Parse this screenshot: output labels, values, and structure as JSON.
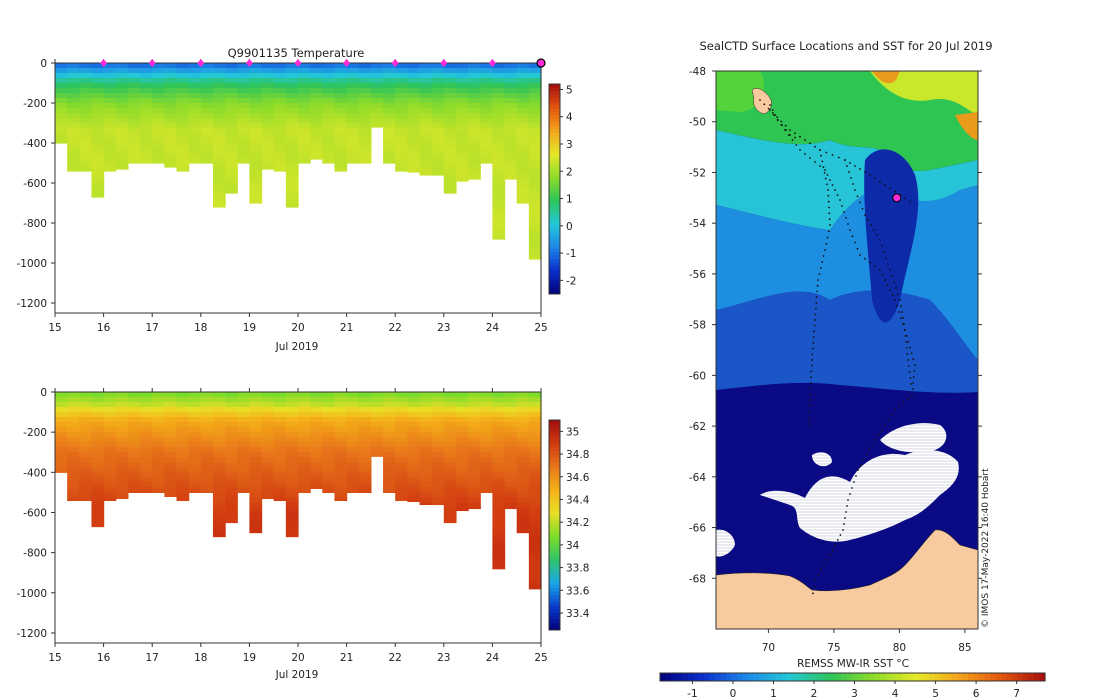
{
  "chart_data": [
    {
      "type": "heatmap",
      "title": "Q9901135  Temperature",
      "xlabel": "Jul 2019",
      "x_ticks": [
        "15",
        "16",
        "17",
        "18",
        "19",
        "20",
        "21",
        "22",
        "23",
        "24",
        "25"
      ],
      "xlim": [
        15,
        25
      ],
      "ylim": [
        -1250,
        0
      ],
      "y_ticks": [
        "0",
        "-200",
        "-400",
        "-600",
        "-800",
        "-1000",
        "-1200"
      ],
      "y_tick_values": [
        0,
        -200,
        -400,
        -600,
        -800,
        -1000,
        -1200
      ],
      "colorbar_ticks": [
        "5",
        "4",
        "3",
        "2",
        "1",
        "0",
        "-1",
        "-2"
      ],
      "colorbar_values": [
        5,
        4,
        3,
        2,
        1,
        0,
        -1,
        -2
      ],
      "colorbar_range": [
        -2.5,
        5.2
      ],
      "profile_days": [
        16,
        17,
        18,
        19,
        20,
        21,
        22,
        23,
        24,
        25
      ],
      "current_day": 25,
      "profile_max_depths": [
        400,
        540,
        540,
        670,
        540,
        530,
        500,
        500,
        500,
        520,
        540,
        500,
        500,
        720,
        650,
        500,
        700,
        530,
        540,
        720,
        500,
        480,
        500,
        540,
        500,
        500,
        320,
        500,
        540,
        545,
        560,
        560,
        650,
        590,
        580,
        500,
        880,
        580,
        700,
        980
      ],
      "layers": [
        {
          "depth": 0,
          "value": -1.2
        },
        {
          "depth": -100,
          "value": 0.8
        },
        {
          "depth": -200,
          "value": 1.7
        },
        {
          "depth": -330,
          "value": 2.3
        },
        {
          "depth": -1250,
          "value": 2.3
        }
      ]
    },
    {
      "type": "heatmap",
      "title": "",
      "xlabel": "Jul 2019",
      "x_ticks": [
        "15",
        "16",
        "17",
        "18",
        "19",
        "20",
        "21",
        "22",
        "23",
        "24",
        "25"
      ],
      "xlim": [
        15,
        25
      ],
      "ylim": [
        -1250,
        0
      ],
      "y_ticks": [
        "0",
        "-200",
        "-400",
        "-600",
        "-800",
        "-1000",
        "-1200"
      ],
      "y_tick_values": [
        0,
        -200,
        -400,
        -600,
        -800,
        -1000,
        -1200
      ],
      "colorbar_ticks": [
        "35",
        "34.8",
        "34.6",
        "34.4",
        "34.2",
        "34",
        "33.8",
        "33.6",
        "33.4"
      ],
      "colorbar_values": [
        35,
        34.8,
        34.6,
        34.4,
        34.2,
        34,
        33.8,
        33.6,
        33.4
      ],
      "colorbar_range": [
        33.25,
        35.1
      ],
      "profile_max_depths": [
        400,
        540,
        540,
        670,
        540,
        530,
        500,
        500,
        500,
        520,
        540,
        500,
        500,
        720,
        650,
        500,
        700,
        530,
        540,
        720,
        500,
        480,
        500,
        540,
        500,
        500,
        320,
        500,
        540,
        545,
        560,
        560,
        650,
        590,
        580,
        500,
        880,
        580,
        700,
        980
      ],
      "layers": [
        {
          "depth": 0,
          "value": 34.05
        },
        {
          "depth": -60,
          "value": 34.2
        },
        {
          "depth": -140,
          "value": 34.5
        },
        {
          "depth": -300,
          "value": 34.7
        },
        {
          "depth": -600,
          "value": 34.9
        },
        {
          "depth": -1250,
          "value": 34.95
        }
      ]
    },
    {
      "type": "heatmap",
      "title": "SealCTD Surface Locations and SST for 20 Jul 2019",
      "xlabel": "",
      "x_ticks": [
        "70",
        "75",
        "80",
        "85"
      ],
      "x_tick_values": [
        70,
        75,
        80,
        85
      ],
      "xlim": [
        66,
        86
      ],
      "ylim": [
        -70,
        -48
      ],
      "y_ticks": [
        "-48",
        "-50",
        "-52",
        "-54",
        "-56",
        "-58",
        "-60",
        "-62",
        "-64",
        "-66",
        "-68"
      ],
      "y_tick_values": [
        -48,
        -50,
        -52,
        -54,
        -56,
        -58,
        -60,
        -62,
        -64,
        -66,
        -68
      ],
      "colorbar_label": "REMSS MW-IR SST °C",
      "colorbar_ticks": [
        "-1",
        "0",
        "1",
        "2",
        "3",
        "4",
        "5",
        "6",
        "7"
      ],
      "colorbar_values": [
        -1,
        0,
        1,
        2,
        3,
        4,
        5,
        6,
        7
      ],
      "colorbar_range": [
        -1.8,
        7.7
      ],
      "current_position": {
        "lon": 79.8,
        "lat": -53.0
      },
      "annotation": "© IMOS 17-May-2022 16:40 Hobart"
    }
  ]
}
